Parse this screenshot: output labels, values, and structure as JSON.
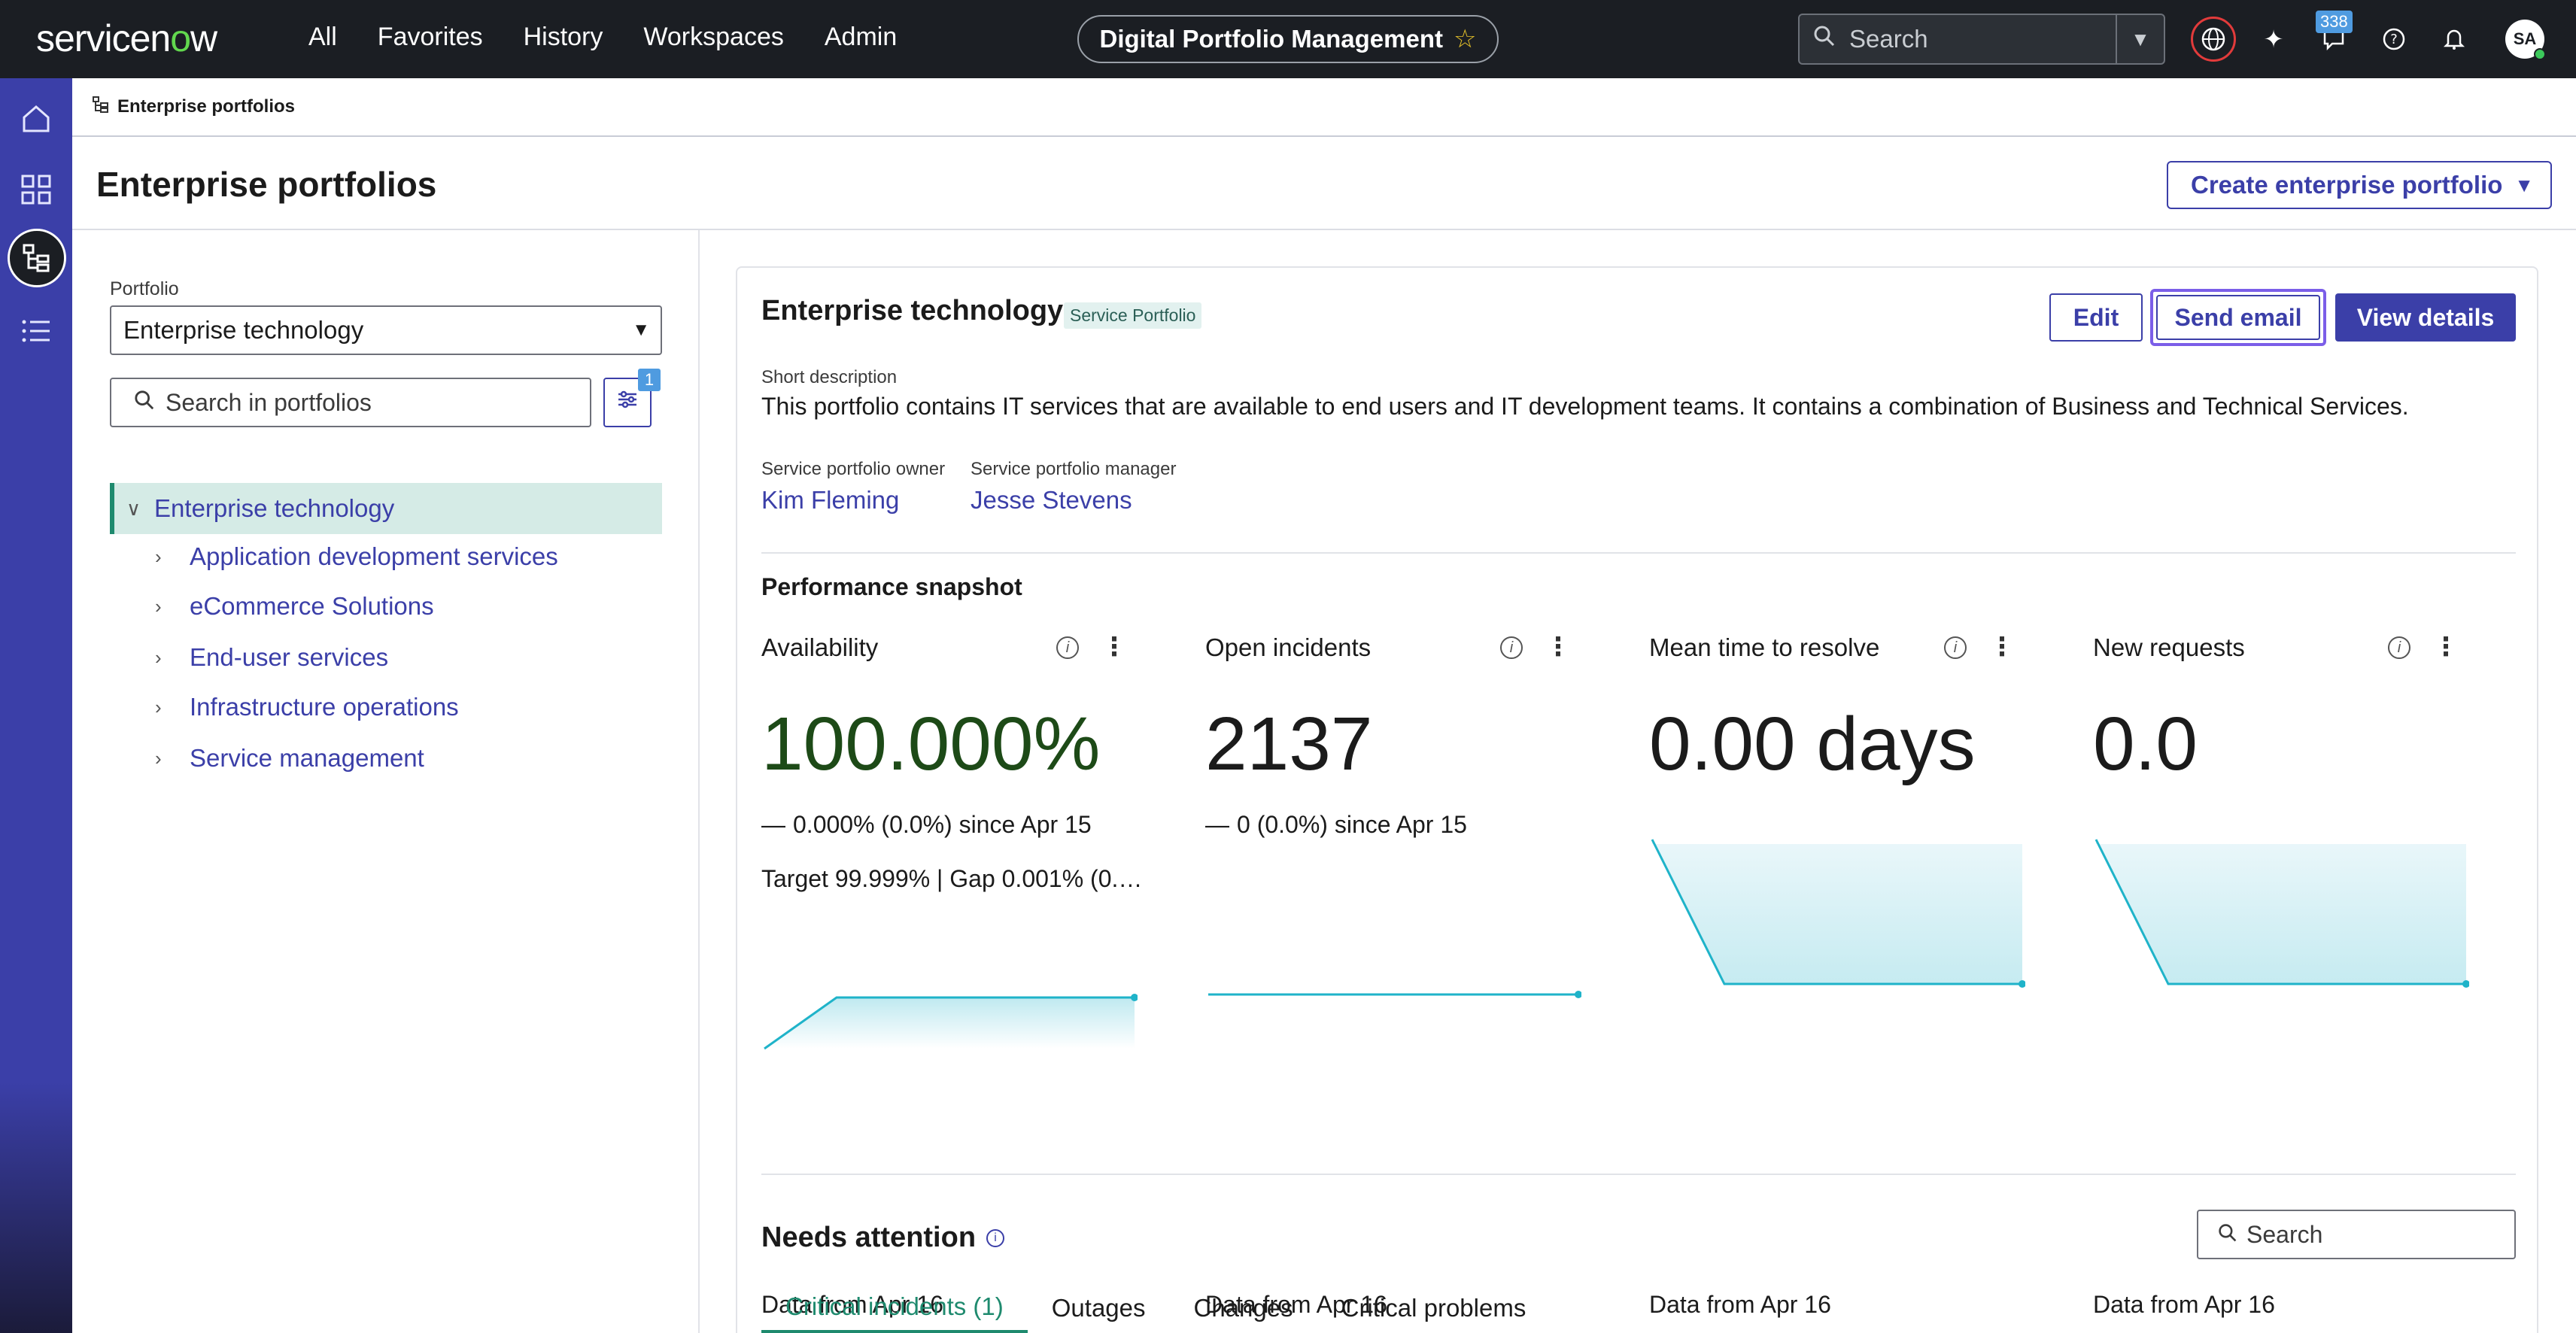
{
  "nav": {
    "logo_pre": "servicen",
    "logo_o": "o",
    "logo_post": "w",
    "links": [
      "All",
      "Favorites",
      "History",
      "Workspaces",
      "Admin"
    ],
    "workspace_title": "Digital Portfolio Management",
    "search_placeholder": "Search",
    "notification_count": "338",
    "avatar_initials": "SA"
  },
  "breadcrumb": {
    "label": "Enterprise portfolios"
  },
  "page": {
    "title": "Enterprise portfolios",
    "create_button": "Create enterprise portfolio"
  },
  "left_panel": {
    "portfolio_label": "Portfolio",
    "portfolio_value": "Enterprise technology",
    "search_placeholder": "Search in portfolios",
    "filter_count": "1",
    "tree_root": "Enterprise technology",
    "tree_items": [
      "Application development services",
      "eCommerce Solutions",
      "End-user services",
      "Infrastructure operations",
      "Service management"
    ]
  },
  "card": {
    "title": "Enterprise technology",
    "tag": "Service Portfolio",
    "edit_button": "Edit",
    "send_email_button": "Send email",
    "view_details_button": "View details",
    "short_desc_label": "Short description",
    "short_desc": "This portfolio contains IT services that are available to end users and IT development teams. It contains a combination of Business and Technical Services.",
    "owner_label": "Service portfolio owner",
    "owner_value": "Kim Fleming",
    "manager_label": "Service portfolio manager",
    "manager_value": "Jesse Stevens",
    "snapshot_title": "Performance snapshot",
    "metrics": [
      {
        "title": "Availability",
        "value": "100.000%",
        "delta": "0.000% (0.0%) since Apr 15",
        "target": "Target 99.999% | Gap 0.001% (0.…",
        "footer": "Data from Apr 16"
      },
      {
        "title": "Open incidents",
        "value": "2137",
        "delta": "0 (0.0%) since Apr 15",
        "target": "",
        "footer": "Data from Apr 16"
      },
      {
        "title": "Mean time to resolve",
        "value": "0.00 days",
        "delta": "",
        "target": "",
        "footer": "Data from Apr 16"
      },
      {
        "title": "New requests",
        "value": "0.0",
        "delta": "",
        "target": "",
        "footer": "Data from Apr 16"
      }
    ],
    "needs_attention_title": "Needs attention",
    "needs_search_placeholder": "Search",
    "tabs": [
      "Critical incidents (1)",
      "Outages",
      "Changes",
      "Critical problems"
    ]
  },
  "colors": {
    "accent": "#3b3fa8",
    "nav_bg": "#1b1e23",
    "brand_green": "#62d84e",
    "selected_green": "#1e8a6e",
    "sparkline": "#1fb3c9"
  },
  "icons": {
    "rail": [
      "home-icon",
      "grid-icon",
      "portfolio-tree-icon",
      "list-icon"
    ],
    "top": [
      "globe-icon",
      "sparkle-icon",
      "chat-icon",
      "help-icon",
      "bell-icon"
    ]
  }
}
